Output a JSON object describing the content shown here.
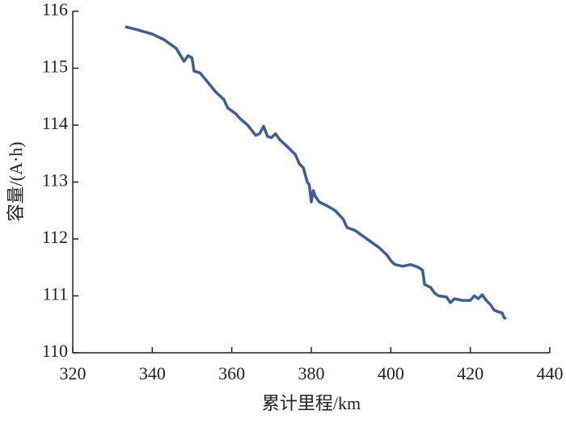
{
  "chart_data": {
    "type": "line",
    "x_label": "累计里程/km",
    "y_label": "容量/(A·h)",
    "xlim": [
      320,
      440
    ],
    "xticks": [
      320,
      340,
      360,
      380,
      400,
      420,
      440
    ],
    "ylim": [
      110,
      116
    ],
    "yticks": [
      110,
      111,
      112,
      113,
      114,
      115,
      116
    ],
    "grid": false,
    "series": [
      {
        "color": "#3b5f9c",
        "x": [
          333.2,
          336,
          340,
          343,
          346,
          348,
          349,
          350,
          350.5,
          352,
          354,
          356,
          358,
          359,
          361,
          362,
          364,
          366,
          367,
          368,
          369,
          370,
          371,
          372,
          374,
          376,
          377,
          378,
          379,
          379.5,
          380,
          380.5,
          381,
          382,
          384,
          386,
          388,
          389,
          391,
          393,
          395,
          397,
          399,
          400,
          401,
          403,
          405,
          407,
          408,
          408.5,
          410,
          411,
          412,
          414,
          415,
          416,
          418,
          420,
          421,
          422,
          423,
          424,
          425,
          426,
          427,
          428,
          428.5,
          429
        ],
        "values": [
          115.73,
          115.68,
          115.6,
          115.5,
          115.35,
          115.12,
          115.22,
          115.18,
          114.95,
          114.92,
          114.75,
          114.58,
          114.45,
          114.3,
          114.2,
          114.12,
          114.0,
          113.82,
          113.85,
          113.98,
          113.8,
          113.78,
          113.85,
          113.75,
          113.62,
          113.48,
          113.32,
          113.25,
          113.0,
          112.95,
          112.65,
          112.85,
          112.75,
          112.65,
          112.58,
          112.5,
          112.35,
          112.2,
          112.15,
          112.05,
          111.95,
          111.85,
          111.72,
          111.62,
          111.55,
          111.52,
          111.55,
          111.5,
          111.45,
          111.2,
          111.15,
          111.05,
          111.0,
          110.98,
          110.88,
          110.95,
          110.92,
          110.92,
          111.0,
          110.95,
          111.02,
          110.92,
          110.85,
          110.75,
          110.72,
          110.7,
          110.62,
          110.6
        ]
      }
    ]
  }
}
